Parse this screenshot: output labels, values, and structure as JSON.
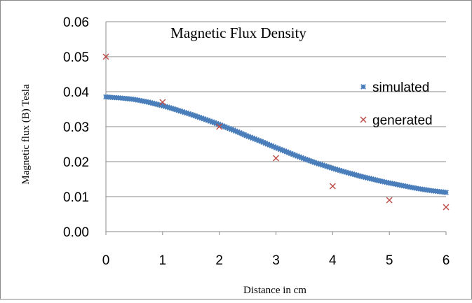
{
  "chart_data": {
    "type": "scatter",
    "title": "Magnetic Flux Density",
    "xlabel": "Distance in cm",
    "ylabel": "Magnetic flux (B) Tesla",
    "xlim": [
      0,
      6
    ],
    "ylim": [
      0,
      0.06
    ],
    "x_ticks": [
      "0",
      "1",
      "2",
      "3",
      "4",
      "5",
      "6"
    ],
    "y_ticks": [
      "0.00",
      "0.01",
      "0.02",
      "0.03",
      "0.04",
      "0.05",
      "0.06"
    ],
    "grid": "horizontal",
    "legend_position": "right",
    "series": [
      {
        "name": "simulated",
        "color": "#4A7EBB",
        "marker": "star",
        "x": [
          0,
          0.25,
          0.5,
          0.75,
          1,
          1.25,
          1.5,
          1.75,
          2,
          2.25,
          2.5,
          2.75,
          3,
          3.25,
          3.5,
          3.75,
          4,
          4.25,
          4.5,
          4.75,
          5,
          5.25,
          5.5,
          5.75,
          6
        ],
        "y": [
          0.0385,
          0.0382,
          0.0378,
          0.037,
          0.036,
          0.0348,
          0.0335,
          0.0321,
          0.0306,
          0.029,
          0.0273,
          0.0257,
          0.024,
          0.0224,
          0.0208,
          0.0194,
          0.0181,
          0.0169,
          0.0158,
          0.0148,
          0.0139,
          0.0131,
          0.0123,
          0.0117,
          0.0112
        ]
      },
      {
        "name": "generated",
        "color": "#BE4B48",
        "marker": "x",
        "x": [
          0,
          1,
          2,
          3,
          4,
          5,
          6
        ],
        "y": [
          0.05,
          0.037,
          0.03,
          0.021,
          0.013,
          0.009,
          0.007
        ]
      }
    ]
  }
}
